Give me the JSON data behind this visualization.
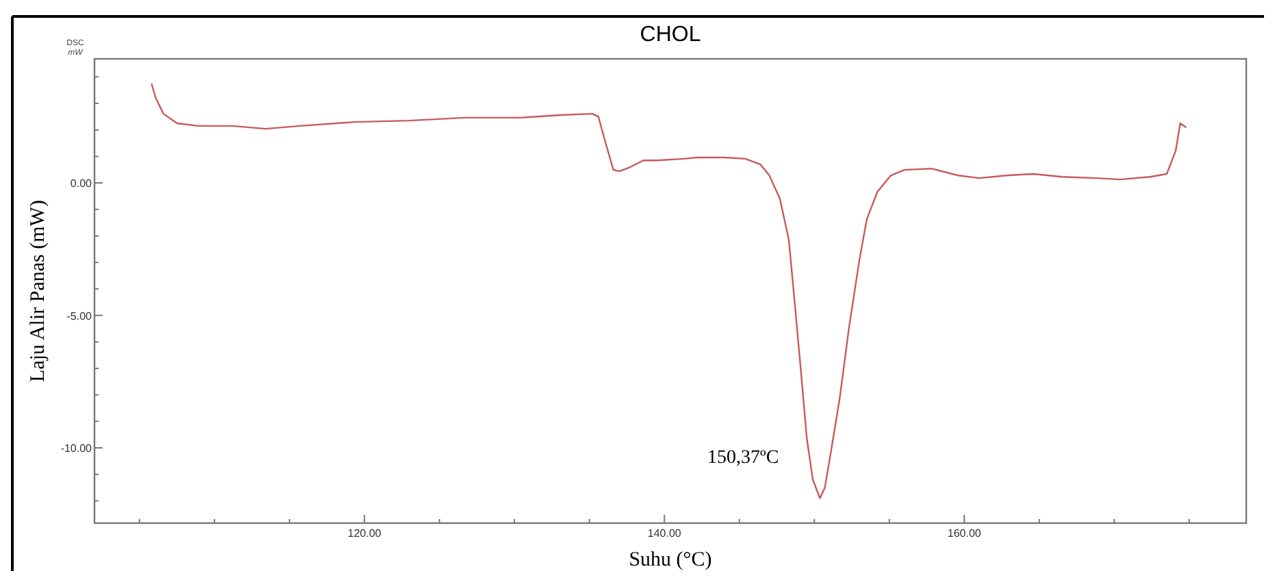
{
  "chart_data": {
    "type": "line",
    "title": "CHOL",
    "xlabel": "Suhu (°C)",
    "ylabel": "Laju Alir Panas (mW)",
    "annotations": [
      "DSC",
      "mW",
      {
        "text": "150,37ºC",
        "x": 150.37,
        "y": -11.9
      }
    ],
    "xlim": [
      102,
      178.8
    ],
    "ylim": [
      -12.84,
      4.68
    ],
    "xticks": [
      {
        "value": 105,
        "label": null
      },
      {
        "value": 110,
        "label": null
      },
      {
        "value": 115,
        "label": null
      },
      {
        "value": 120,
        "label": "120.00"
      },
      {
        "value": 125,
        "label": null
      },
      {
        "value": 130,
        "label": null
      },
      {
        "value": 135,
        "label": null
      },
      {
        "value": 140,
        "label": "140.00"
      },
      {
        "value": 145,
        "label": null
      },
      {
        "value": 150,
        "label": null
      },
      {
        "value": 155,
        "label": null
      },
      {
        "value": 160,
        "label": "160.00"
      },
      {
        "value": 165,
        "label": null
      },
      {
        "value": 170,
        "label": null
      },
      {
        "value": 175,
        "label": null
      }
    ],
    "yticks": [
      {
        "value": -12,
        "label": null
      },
      {
        "value": -11,
        "label": null
      },
      {
        "value": -10,
        "label": "-10.00"
      },
      {
        "value": -9,
        "label": null
      },
      {
        "value": -8,
        "label": null
      },
      {
        "value": -7,
        "label": null
      },
      {
        "value": -6,
        "label": null
      },
      {
        "value": -5,
        "label": "-5.00"
      },
      {
        "value": -4,
        "label": null
      },
      {
        "value": -3,
        "label": null
      },
      {
        "value": -2,
        "label": null
      },
      {
        "value": -1,
        "label": null
      },
      {
        "value": 0,
        "label": "0.00"
      },
      {
        "value": 1,
        "label": null
      },
      {
        "value": 2,
        "label": null
      },
      {
        "value": 3,
        "label": null
      },
      {
        "value": 4,
        "label": null
      }
    ],
    "grid": false,
    "marker": "none",
    "line_style": "solid",
    "series": [
      {
        "color": "#c85a5a",
        "x": [
          105.8,
          106.1,
          106.6,
          107.5,
          108.9,
          111.2,
          113.4,
          115.7,
          119.4,
          123.0,
          126.7,
          130.4,
          133.1,
          135.2,
          135.6,
          136.1,
          136.6,
          137.0,
          137.7,
          138.6,
          139.5,
          141.3,
          142.2,
          144.0,
          145.4,
          146.4,
          147.0,
          147.7,
          148.3,
          148.6,
          149.1,
          149.5,
          149.9,
          150.37,
          150.7,
          151.1,
          151.7,
          152.3,
          153.0,
          153.5,
          154.2,
          155.1,
          156.0,
          157.8,
          159.6,
          161.0,
          162.8,
          164.6,
          166.5,
          168.8,
          170.4,
          172.4,
          173.5,
          174.1,
          174.4,
          174.8
        ],
        "values": [
          3.75,
          3.18,
          2.61,
          2.25,
          2.15,
          2.15,
          2.04,
          2.15,
          2.3,
          2.35,
          2.46,
          2.46,
          2.56,
          2.61,
          2.5,
          1.47,
          0.49,
          0.44,
          0.59,
          0.85,
          0.85,
          0.91,
          0.96,
          0.96,
          0.91,
          0.7,
          0.28,
          -0.59,
          -2.15,
          -3.96,
          -7.06,
          -9.65,
          -11.2,
          -11.9,
          -11.5,
          -10.17,
          -8.1,
          -5.51,
          -2.92,
          -1.37,
          -0.34,
          0.28,
          0.49,
          0.54,
          0.28,
          0.18,
          0.28,
          0.34,
          0.23,
          0.18,
          0.13,
          0.23,
          0.34,
          1.22,
          2.25,
          2.09
        ]
      }
    ]
  }
}
